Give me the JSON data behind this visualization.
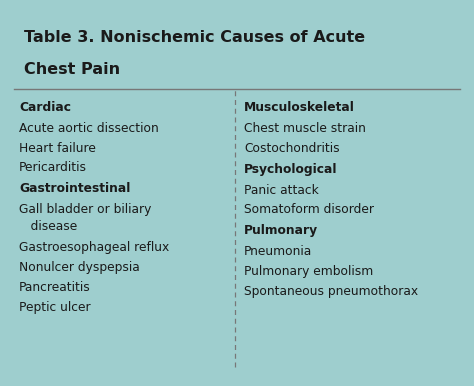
{
  "title_line1": "Table 3. Nonischemic Causes of Acute",
  "title_line2": "Chest Pain",
  "outer_bg": "#9ecece",
  "header_bg": "#c8dede",
  "body_bg": "#e8f2f2",
  "border_color": "#777777",
  "title_fontsize": 11.5,
  "body_fontsize": 8.8,
  "text_color": "#1a1a1a",
  "left_col": [
    {
      "text": "Cardiac",
      "bold": true
    },
    {
      "text": "Acute aortic dissection",
      "bold": false
    },
    {
      "text": "Heart failure",
      "bold": false
    },
    {
      "text": "Pericarditis",
      "bold": false
    },
    {
      "text": "Gastrointestinal",
      "bold": true
    },
    {
      "text": "Gall bladder or biliary",
      "bold": false,
      "indent_next": true
    },
    {
      "text": "   disease",
      "bold": false,
      "indent": true
    },
    {
      "text": "Gastroesophageal reflux",
      "bold": false
    },
    {
      "text": "Nonulcer dyspepsia",
      "bold": false
    },
    {
      "text": "Pancreatitis",
      "bold": false
    },
    {
      "text": "Peptic ulcer",
      "bold": false
    }
  ],
  "right_col": [
    {
      "text": "Musculoskeletal",
      "bold": true
    },
    {
      "text": "Chest muscle strain",
      "bold": false
    },
    {
      "text": "Costochondritis",
      "bold": false
    },
    {
      "text": "Psychological",
      "bold": true
    },
    {
      "text": "Panic attack",
      "bold": false
    },
    {
      "text": "Somatoform disorder",
      "bold": false
    },
    {
      "text": "Pulmonary",
      "bold": true
    },
    {
      "text": "Pneumonia",
      "bold": false
    },
    {
      "text": "Pulmonary embolism",
      "bold": false
    },
    {
      "text": "Spontaneous pneumothorax",
      "bold": false
    }
  ]
}
